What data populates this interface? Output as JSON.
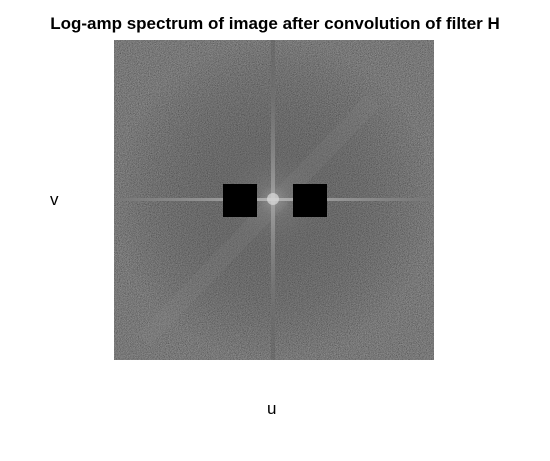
{
  "figure": {
    "title": "Log-amp spectrum of image after convolution of filter H",
    "xlabel": "u",
    "ylabel": "v"
  },
  "colors": {
    "background": "#ffffff",
    "text": "#000000",
    "spectrum_base": "#1e1e1e",
    "notch_fill": "#000000"
  }
}
